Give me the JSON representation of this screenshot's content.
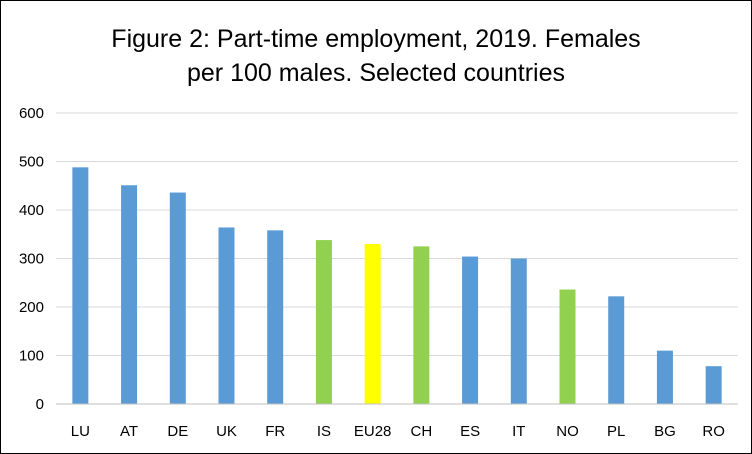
{
  "chart_data": {
    "type": "bar",
    "title_lines": [
      "Figure 2: Part-time employment, 2019. Females",
      "per 100 males. Selected countries"
    ],
    "categories": [
      "LU",
      "AT",
      "DE",
      "UK",
      "FR",
      "IS",
      "EU28",
      "CH",
      "ES",
      "IT",
      "NO",
      "PL",
      "BG",
      "RO"
    ],
    "values": [
      488,
      451,
      436,
      364,
      358,
      338,
      330,
      325,
      304,
      300,
      236,
      222,
      110,
      78
    ],
    "bar_colors": [
      "#5b9bd5",
      "#5b9bd5",
      "#5b9bd5",
      "#5b9bd5",
      "#5b9bd5",
      "#92d050",
      "#ffff00",
      "#92d050",
      "#5b9bd5",
      "#5b9bd5",
      "#92d050",
      "#5b9bd5",
      "#5b9bd5",
      "#5b9bd5"
    ],
    "ylim": [
      0,
      600
    ],
    "yticks": [
      0,
      100,
      200,
      300,
      400,
      500,
      600
    ],
    "grid": true,
    "legend": "none"
  },
  "colors": {
    "gridline": "#d9d9d9",
    "axis": "#bfbfbf"
  }
}
